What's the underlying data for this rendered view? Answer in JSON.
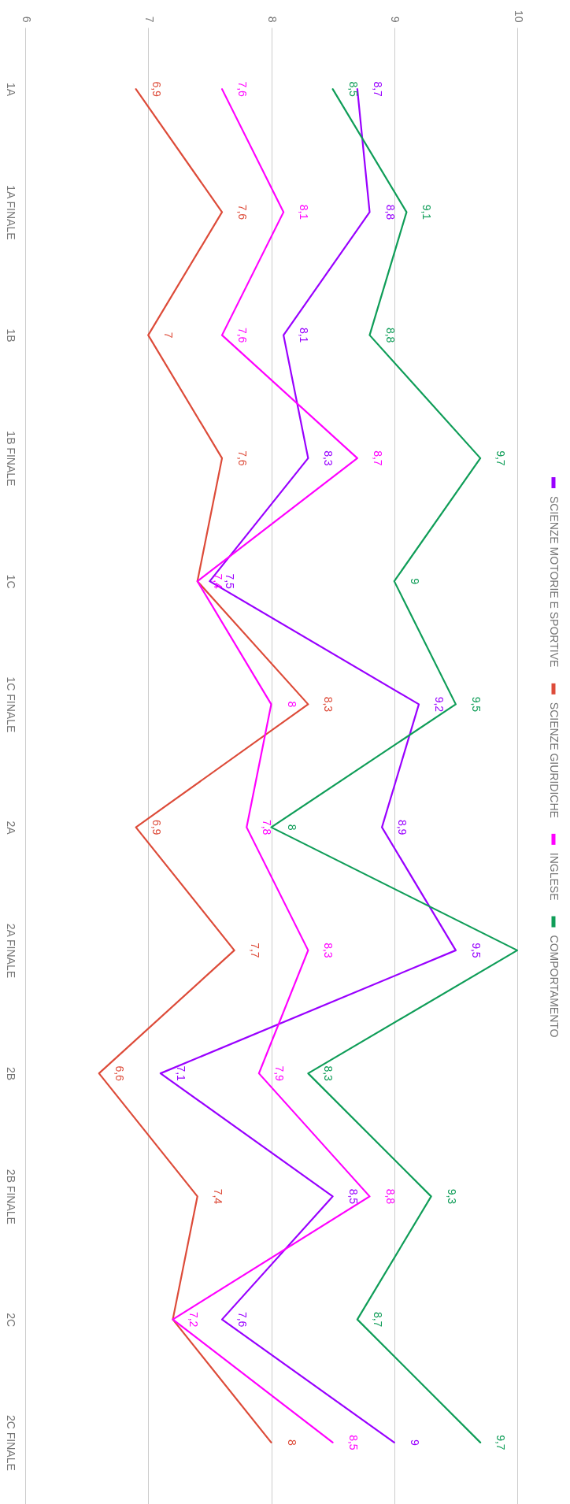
{
  "chart_data": {
    "type": "line",
    "orientation": "horizontal",
    "categories": [
      "1A",
      "1A FINALE",
      "1B",
      "1B FINALE",
      "1C",
      "1C FINALE",
      "2A",
      "2A FINALE",
      "2B",
      "2B FINALE",
      "2C",
      "2C FINALE"
    ],
    "xlim": [
      6,
      10
    ],
    "xticks": [
      6,
      7,
      8,
      9,
      10
    ],
    "grid": "x",
    "legend": "right",
    "line_style": "solid",
    "series": [
      {
        "name": "SCIENZE MOTORIE E SPORTIVE",
        "color": "#9900ff",
        "values": [
          8.7,
          8.8,
          8.1,
          8.3,
          7.5,
          9.2,
          8.9,
          9.5,
          7.1,
          8.5,
          7.6,
          9
        ],
        "value_labels": [
          "8,7",
          "8,8",
          "8,1",
          "8,3",
          "7,5",
          "9,2",
          "8,9",
          "9,5",
          "7,1",
          "8,5",
          "7,6",
          "9"
        ]
      },
      {
        "name": "SCIENZE GIURIDICHE",
        "color": "#dd4b39",
        "values": [
          6.9,
          7.6,
          7,
          7.6,
          7.4,
          8.3,
          6.9,
          7.7,
          6.6,
          7.4,
          7.2,
          8
        ],
        "value_labels": [
          "6,9",
          "7,6",
          "7",
          "7,6",
          null,
          "8,3",
          "6,9",
          "7,7",
          "6,6",
          "7,4",
          null,
          "8"
        ]
      },
      {
        "name": "INGLESE",
        "color": "#ff00ff",
        "values": [
          7.6,
          8.1,
          7.6,
          8.7,
          7.4,
          8,
          7.8,
          8.3,
          7.9,
          8.8,
          7.2,
          8.5
        ],
        "value_labels": [
          "7,6",
          "8,1",
          "7,6",
          "8,7",
          "7,4",
          "8",
          "7,8",
          "8,3",
          "7,9",
          "8,8",
          "7,2",
          "8,5"
        ]
      },
      {
        "name": "COMPORTAMENTO",
        "color": "#0f9d58",
        "values": [
          8.5,
          9.1,
          8.8,
          9.7,
          9,
          9.5,
          8,
          10,
          8.3,
          9.3,
          8.7,
          9.7
        ],
        "value_labels": [
          "8,5",
          "9,1",
          "8,8",
          "9,7",
          "9",
          "9,5",
          "8",
          null,
          "8,3",
          "9,3",
          "8,7",
          "9,7"
        ]
      }
    ]
  }
}
